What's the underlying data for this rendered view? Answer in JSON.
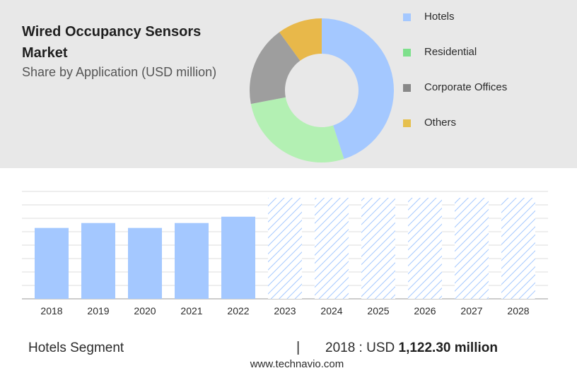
{
  "header": {
    "title": "Wired Occupancy Sensors Market",
    "subtitle": "Share by Application (USD million)"
  },
  "colors": {
    "hotels": "#a4c8ff",
    "residential": "#b3f0b3",
    "corporate_offices": "#9e9e9e",
    "others": "#e8b84a",
    "forecast_hatch": "#a4c8ff",
    "panel_bg": "#e8e8e8",
    "legend_residential": "#7ee08c",
    "legend_others": "#e6c04e"
  },
  "chart_data": [
    {
      "type": "pie",
      "variant": "donut",
      "title": "Share by Application (USD million)",
      "categories": [
        "Hotels",
        "Residential",
        "Corporate Offices",
        "Others"
      ],
      "values": [
        45,
        27,
        18,
        10
      ],
      "legend_position": "right"
    },
    {
      "type": "bar",
      "series_label": "Hotels Segment",
      "categories": [
        "2018",
        "2019",
        "2020",
        "2021",
        "2022",
        "2023",
        "2024",
        "2025",
        "2026",
        "2027",
        "2028"
      ],
      "values": [
        1122.3,
        1200,
        1122.3,
        1200,
        1300,
        1600,
        1600,
        1600,
        1600,
        1600,
        1600
      ],
      "forecast_from": "2023",
      "grid": true,
      "ylim": [
        0,
        1700
      ]
    }
  ],
  "footer": {
    "segment": "Hotels Segment",
    "separator": "|",
    "year_label": "2018 : USD",
    "value_label": "1,122.30 million",
    "source": "www.technavio.com"
  }
}
